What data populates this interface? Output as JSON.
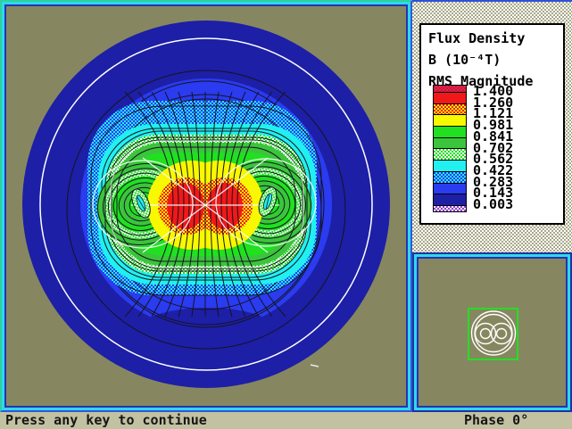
{
  "status_bar": {
    "message": "Press any key to continue",
    "phase": "Phase 0°"
  },
  "legend": {
    "title_lines": [
      "Flux Density",
      "B (10⁻⁴T)",
      "RMS Magnitude"
    ],
    "values": [
      "1.400",
      "1.260",
      "1.121",
      "0.981",
      "0.841",
      "0.702",
      "0.562",
      "0.422",
      "0.283",
      "0.143",
      "0.003"
    ],
    "bands": [
      {
        "name": "above-max-crimson",
        "style": "checker",
        "c1": "#E82448",
        "c2": "#C01840",
        "thin": true
      },
      {
        "name": "red",
        "style": "solid",
        "c1": "#F01818"
      },
      {
        "name": "orange-dither",
        "style": "checker",
        "c1": "#F01818",
        "c2": "#F8F800"
      },
      {
        "name": "yellow",
        "style": "solid",
        "c1": "#F8F800"
      },
      {
        "name": "lime",
        "style": "solid",
        "c1": "#20E020"
      },
      {
        "name": "green",
        "style": "solid",
        "c1": "#3CC43C"
      },
      {
        "name": "pale-green-dither",
        "style": "checker",
        "c1": "#20E020",
        "c2": "#FFFFFF"
      },
      {
        "name": "cyan",
        "style": "solid",
        "c1": "#20F0F0"
      },
      {
        "name": "cyan-blue-dither",
        "style": "checker",
        "c1": "#20F0F0",
        "c2": "#2A3BF0"
      },
      {
        "name": "blue",
        "style": "solid",
        "c1": "#2A3BF0"
      },
      {
        "name": "navy",
        "style": "solid",
        "c1": "#1D1FA6"
      },
      {
        "name": "below-min-violet",
        "style": "checker",
        "c1": "#9040D0",
        "c2": "#F8E8F8",
        "thin": true
      }
    ]
  },
  "chart_data": {
    "type": "heatmap",
    "title": "Flux Density",
    "units": "B (10⁻⁴T)",
    "quantity": "RMS Magnitude",
    "contour_levels": [
      1.4,
      1.26,
      1.121,
      0.981,
      0.841,
      0.702,
      0.562,
      0.422,
      0.283,
      0.143,
      0.003
    ],
    "phase_deg": 0,
    "legend_position": "right",
    "description": "Shaded contour map of RMS magnetic flux density over a circular two-conductor cable cross-section; maximum field (red, >1.4×10⁻⁴ T) between the two conductors at the centre, decaying to navy (<0.143×10⁻⁴ T) at the outer boundary, with black flux lines and a white outer boundary circle."
  },
  "plot_colors": {
    "background_olive": "#868760",
    "navy": "#1D1FA6",
    "blue": "#2A3BF0",
    "cyan": "#20F0F0",
    "lime": "#20E020",
    "green": "#3CC43C",
    "yellow": "#F8F800",
    "red": "#F01818",
    "contour_line": "#141420",
    "boundary_circle": "#FFFFFF"
  },
  "minimap": {
    "description": "geometry locator: twin-conductor cable outline",
    "zoom_box_color": "#22E022",
    "outline_color": "#FFFFFF"
  }
}
